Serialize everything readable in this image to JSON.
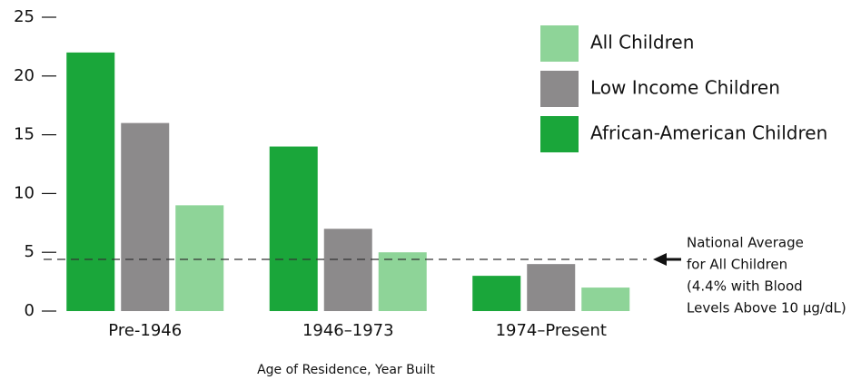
{
  "chart_data": {
    "type": "bar",
    "x_label": "Age of Residence, Year Built",
    "categories": [
      "Pre-1946",
      "1946–1973",
      "1974–Present"
    ],
    "series": [
      {
        "name": "All Children",
        "color": "#8ed498",
        "values": [
          9,
          5,
          2
        ]
      },
      {
        "name": "Low Income Children",
        "color": "#8c8a8b",
        "values": [
          16,
          7,
          4
        ]
      },
      {
        "name": "African-American Children",
        "color": "#1aa63a",
        "values": [
          22,
          14,
          3
        ]
      }
    ],
    "ylim": [
      0,
      25
    ],
    "yticks": [
      0,
      5,
      10,
      15,
      20,
      25
    ],
    "reference_line": 4.4,
    "annotation": [
      "National Average",
      "for All Children",
      "(4.4% with Blood",
      "Levels Above 10 µg/dL)"
    ],
    "legend": "top-right"
  }
}
